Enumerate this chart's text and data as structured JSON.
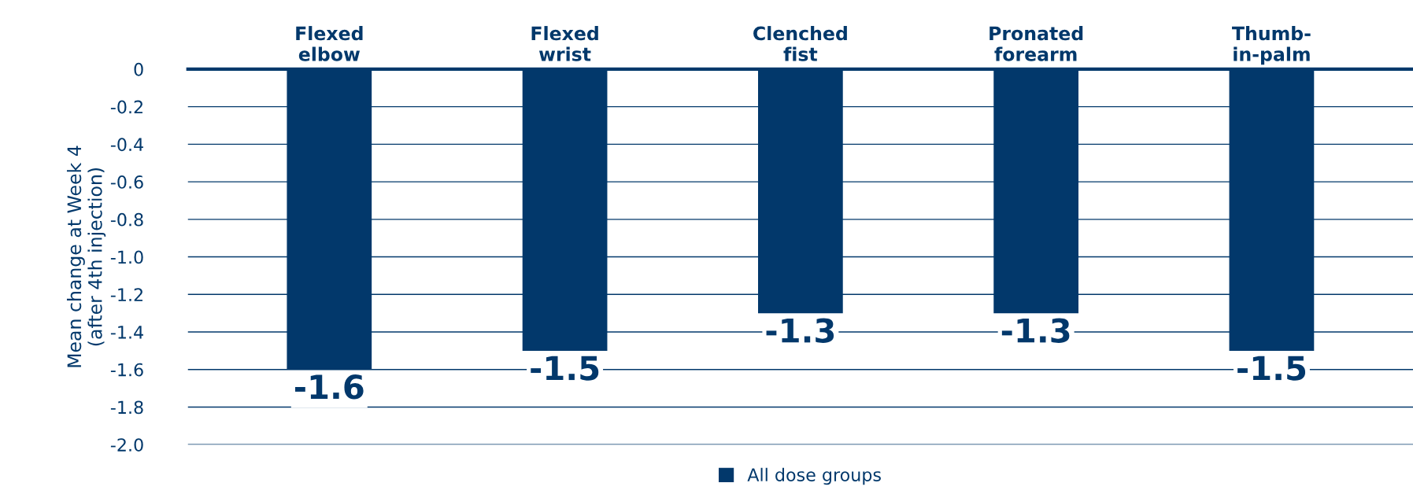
{
  "chart_data": {
    "type": "bar",
    "ylabel": "Mean change at Week 4\n(after 4th injection)",
    "categories": [
      "Flexed\nelbow",
      "Flexed\nwrist",
      "Clenched\nfist",
      "Pronated\nforearm",
      "Thumb-\nin-palm"
    ],
    "series": [
      {
        "name": "All dose groups",
        "color": "#02386b",
        "values": [
          -1.6,
          -1.5,
          -1.3,
          -1.3,
          -1.5
        ]
      }
    ],
    "ylim": [
      -2.0,
      0
    ],
    "yticks": [
      0,
      {
        "value": -0.2,
        "label": "-0.2"
      },
      {
        "value": -0.4,
        "label": "-0.4"
      },
      {
        "value": -0.6,
        "label": "-0.6"
      },
      {
        "value": -0.8,
        "label": "-0.8"
      },
      {
        "value": -1.0,
        "label": "-1.0"
      },
      {
        "value": -1.2,
        "label": "-1.2"
      },
      {
        "value": -1.4,
        "label": "-1.4"
      },
      {
        "value": -1.6,
        "label": "-1.6"
      },
      {
        "value": -1.8,
        "label": "-1.8"
      },
      {
        "value": -2.0,
        "label": "-2.0"
      }
    ],
    "grid": "y",
    "legend": "bottom",
    "data_labels": true
  }
}
